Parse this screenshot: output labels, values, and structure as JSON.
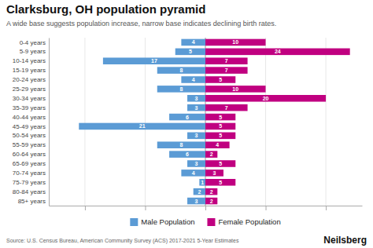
{
  "chart_data": {
    "type": "pyramid",
    "orientation": "horizontal",
    "title": "Clarksburg, OH population pyramid",
    "subtitle": "A wide base suggests population increase, narrow base indicates declining birth rates.",
    "annotations": [
      "Source: U.S. Census Bureau, American Community Survey (ACS) 2017-2021 5-Year Estimates",
      "Neilsberg"
    ],
    "categories": [
      "85+ years",
      "80-84 years",
      "75-79 years",
      "70-74 years",
      "65-69 years",
      "60-64 years",
      "55-59 years",
      "50-54 years",
      "45-49 years",
      "40-44 years",
      "35-39 years",
      "30-34 years",
      "25-29 years",
      "20-24 years",
      "15-19 years",
      "10-14 years",
      "5-9 years",
      "0-4 years"
    ],
    "series": [
      {
        "name": "Male Population",
        "color": "#5b9bd5",
        "values": [
          3,
          2,
          1,
          4,
          3,
          6,
          8,
          3,
          21,
          6,
          3,
          3,
          8,
          4,
          8,
          17,
          5,
          4
        ]
      },
      {
        "name": "Female Population",
        "color": "#c00080",
        "values": [
          2,
          2,
          5,
          3,
          5,
          2,
          4,
          5,
          5,
          5,
          7,
          20,
          10,
          5,
          7,
          7,
          24,
          10
        ]
      }
    ],
    "xlim": [
      -26,
      26
    ],
    "xticks": [
      -20,
      -10,
      0,
      10,
      20
    ],
    "tick_labels": "y",
    "grid": true,
    "legend": "bottom",
    "data_labels": true
  }
}
